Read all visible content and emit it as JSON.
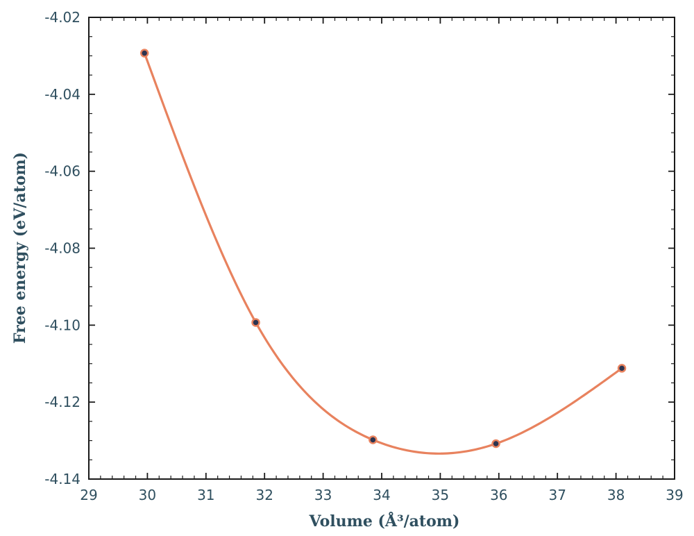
{
  "chart_data": {
    "type": "line",
    "title": "",
    "xlabel": "Volume (Å³/atom)",
    "ylabel": "Free energy (eV/atom)",
    "xlim": [
      29,
      39
    ],
    "ylim": [
      -4.14,
      -4.02
    ],
    "xticks": [
      "29",
      "30",
      "31",
      "32",
      "33",
      "34",
      "35",
      "36",
      "37",
      "38",
      "39"
    ],
    "yticks": [
      "-4.02",
      "-4.04",
      "-4.06",
      "-4.08",
      "-4.10",
      "-4.12",
      "-4.14"
    ],
    "grid": false,
    "series": [
      {
        "points": [
          {
            "x": 29.95,
            "y": -4.0293
          },
          {
            "x": 31.85,
            "y": -4.0993
          },
          {
            "x": 33.85,
            "y": -4.1298
          },
          {
            "x": 35.95,
            "y": -4.1308
          },
          {
            "x": 38.1,
            "y": -4.1112
          }
        ],
        "fit": "smooth curve through points",
        "line_color": "#e8825e",
        "marker_fill": "#2c3450",
        "marker_edge": "#e8825e"
      }
    ],
    "axis_color": "#1a1a1a",
    "label_color": "#2f4f5f"
  }
}
